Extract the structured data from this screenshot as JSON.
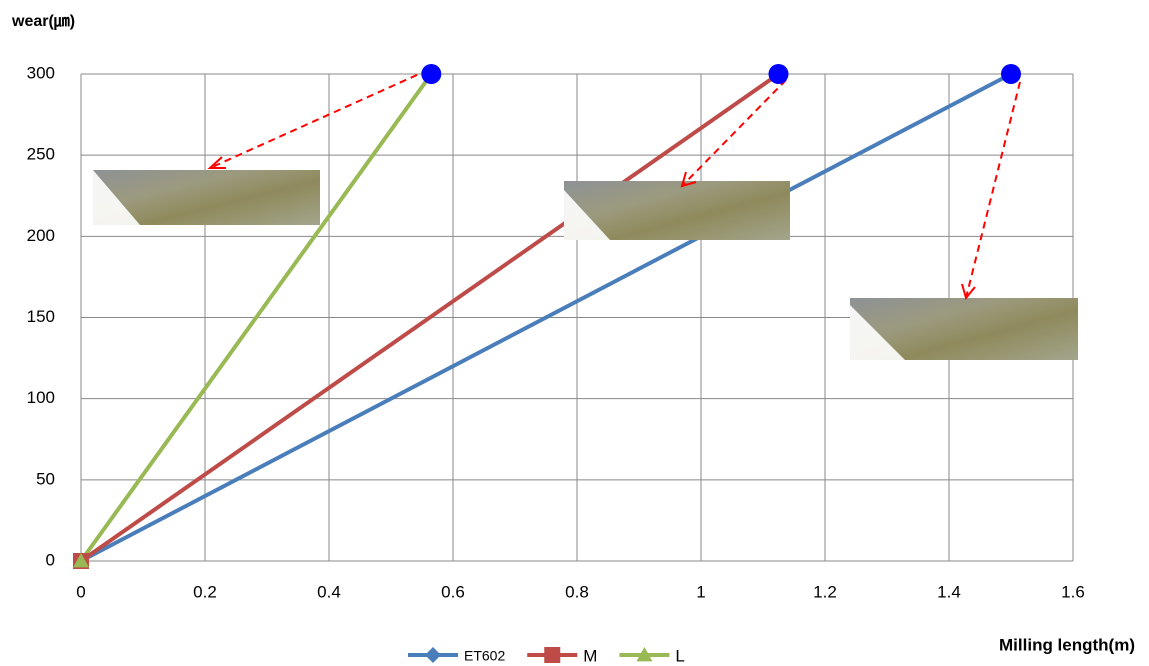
{
  "chart_data": {
    "type": "line",
    "y_label": "wear(㎛)",
    "x_label": "Milling length(m)",
    "x": [
      0,
      1
    ],
    "series": [
      {
        "name": "ET602",
        "color": "#4a7ebb",
        "marker": "diamond",
        "x": [
          0,
          1.5
        ],
        "values": [
          0,
          300
        ]
      },
      {
        "name": "M",
        "color": "#be4b48",
        "marker": "square",
        "x": [
          0,
          1.125
        ],
        "values": [
          0,
          300
        ]
      },
      {
        "name": "L",
        "color": "#98b954",
        "marker": "triangle",
        "x": [
          0,
          0.565
        ],
        "values": [
          0,
          300
        ]
      }
    ],
    "end_marker_color": "#0000ff",
    "xlim": [
      0,
      1.6
    ],
    "xticks": [
      0,
      0.2,
      0.4,
      0.6,
      0.8,
      1,
      1.2,
      1.4,
      1.6
    ],
    "ylim": [
      0,
      300
    ],
    "yticks": [
      0,
      50,
      100,
      150,
      200,
      250,
      300
    ],
    "grid": true,
    "legend": "bottom"
  }
}
